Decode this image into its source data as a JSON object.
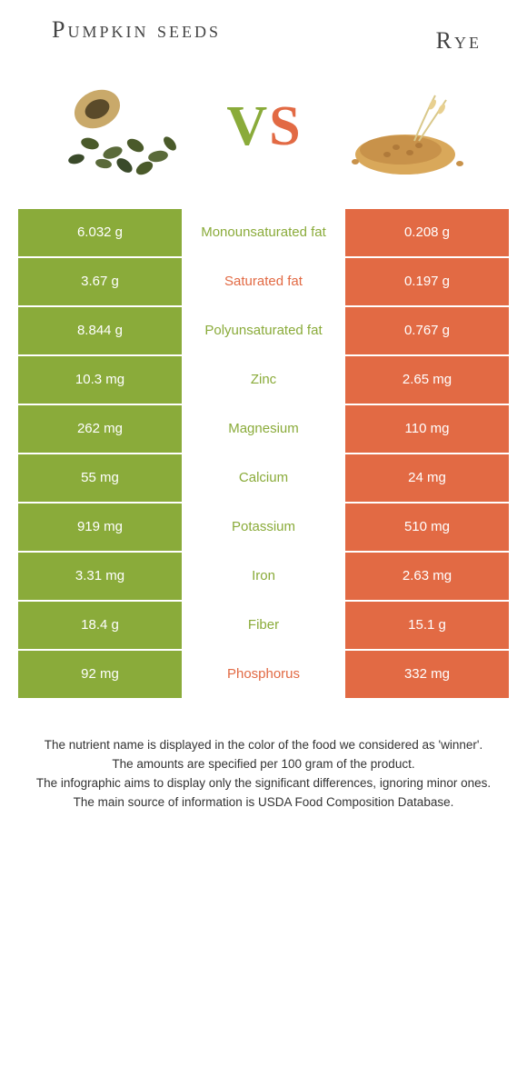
{
  "header": {
    "left_title": "Pumpkin seeds",
    "right_title": "Rye",
    "vs_v": "V",
    "vs_s": "S"
  },
  "colors": {
    "left": "#8aab3a",
    "right": "#e26a44",
    "mid_bg": "#ffffff"
  },
  "rows": [
    {
      "left": "6.032 g",
      "label": "Monounsaturated fat",
      "right": "0.208 g",
      "winner": "left"
    },
    {
      "left": "3.67 g",
      "label": "Saturated fat",
      "right": "0.197 g",
      "winner": "right"
    },
    {
      "left": "8.844 g",
      "label": "Polyunsaturated fat",
      "right": "0.767 g",
      "winner": "left"
    },
    {
      "left": "10.3 mg",
      "label": "Zinc",
      "right": "2.65 mg",
      "winner": "left"
    },
    {
      "left": "262 mg",
      "label": "Magnesium",
      "right": "110 mg",
      "winner": "left"
    },
    {
      "left": "55 mg",
      "label": "Calcium",
      "right": "24 mg",
      "winner": "left"
    },
    {
      "left": "919 mg",
      "label": "Potassium",
      "right": "510 mg",
      "winner": "left"
    },
    {
      "left": "3.31 mg",
      "label": "Iron",
      "right": "2.63 mg",
      "winner": "left"
    },
    {
      "left": "18.4 g",
      "label": "Fiber",
      "right": "15.1 g",
      "winner": "left"
    },
    {
      "left": "92 mg",
      "label": "Phosphorus",
      "right": "332 mg",
      "winner": "right"
    }
  ],
  "footer": {
    "line1": "The nutrient name is displayed in the color of the food we considered as 'winner'.",
    "line2": "The amounts are specified per 100 gram of the product.",
    "line3": "The infographic aims to display only the significant differences, ignoring minor ones.",
    "line4": "The main source of information is USDA Food Composition Database."
  }
}
